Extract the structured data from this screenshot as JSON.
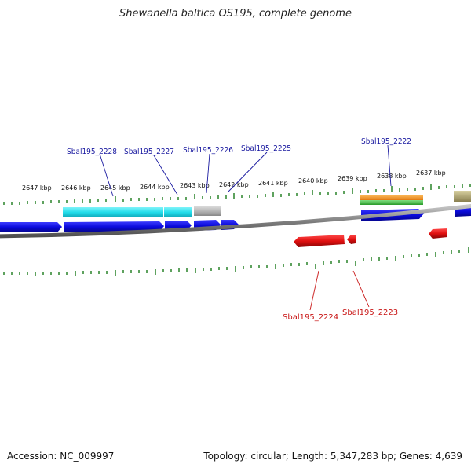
{
  "title": "Shewanella baltica OS195, complete genome",
  "footer": {
    "accession": "Accession: NC_009997",
    "summary": "Topology: circular; Length: 5,347,283 bp; Genes: 4,639"
  },
  "scale_labels": [
    "2647 kbp",
    "2646 kbp",
    "2645 kbp",
    "2644 kbp",
    "2643 kbp",
    "2642 kbp",
    "2641 kbp",
    "2640 kbp",
    "2639 kbp",
    "2638 kbp",
    "2637 kbp"
  ],
  "gene_labels_top": [
    "Sbal195_2228",
    "Sbal195_2227",
    "Sbal195_2226",
    "Sbal195_2225",
    "Sbal195_2222"
  ],
  "gene_labels_bottom": [
    "Sbal195_2224",
    "Sbal195_2223"
  ],
  "colors": {
    "forward_gene": "#0a0adc",
    "reverse_gene": "#e01010",
    "cyan_feature": "#33e0ee",
    "gray_feature": "#b8b8b8",
    "orange_feature": "#f0901a",
    "green_feature": "#44bb44",
    "olive_feature": "#b0a870",
    "backbone": "#8a8a8a",
    "tick": "#1a7a1a",
    "label_blue": "#1a1aa0",
    "label_red": "#c81414"
  }
}
